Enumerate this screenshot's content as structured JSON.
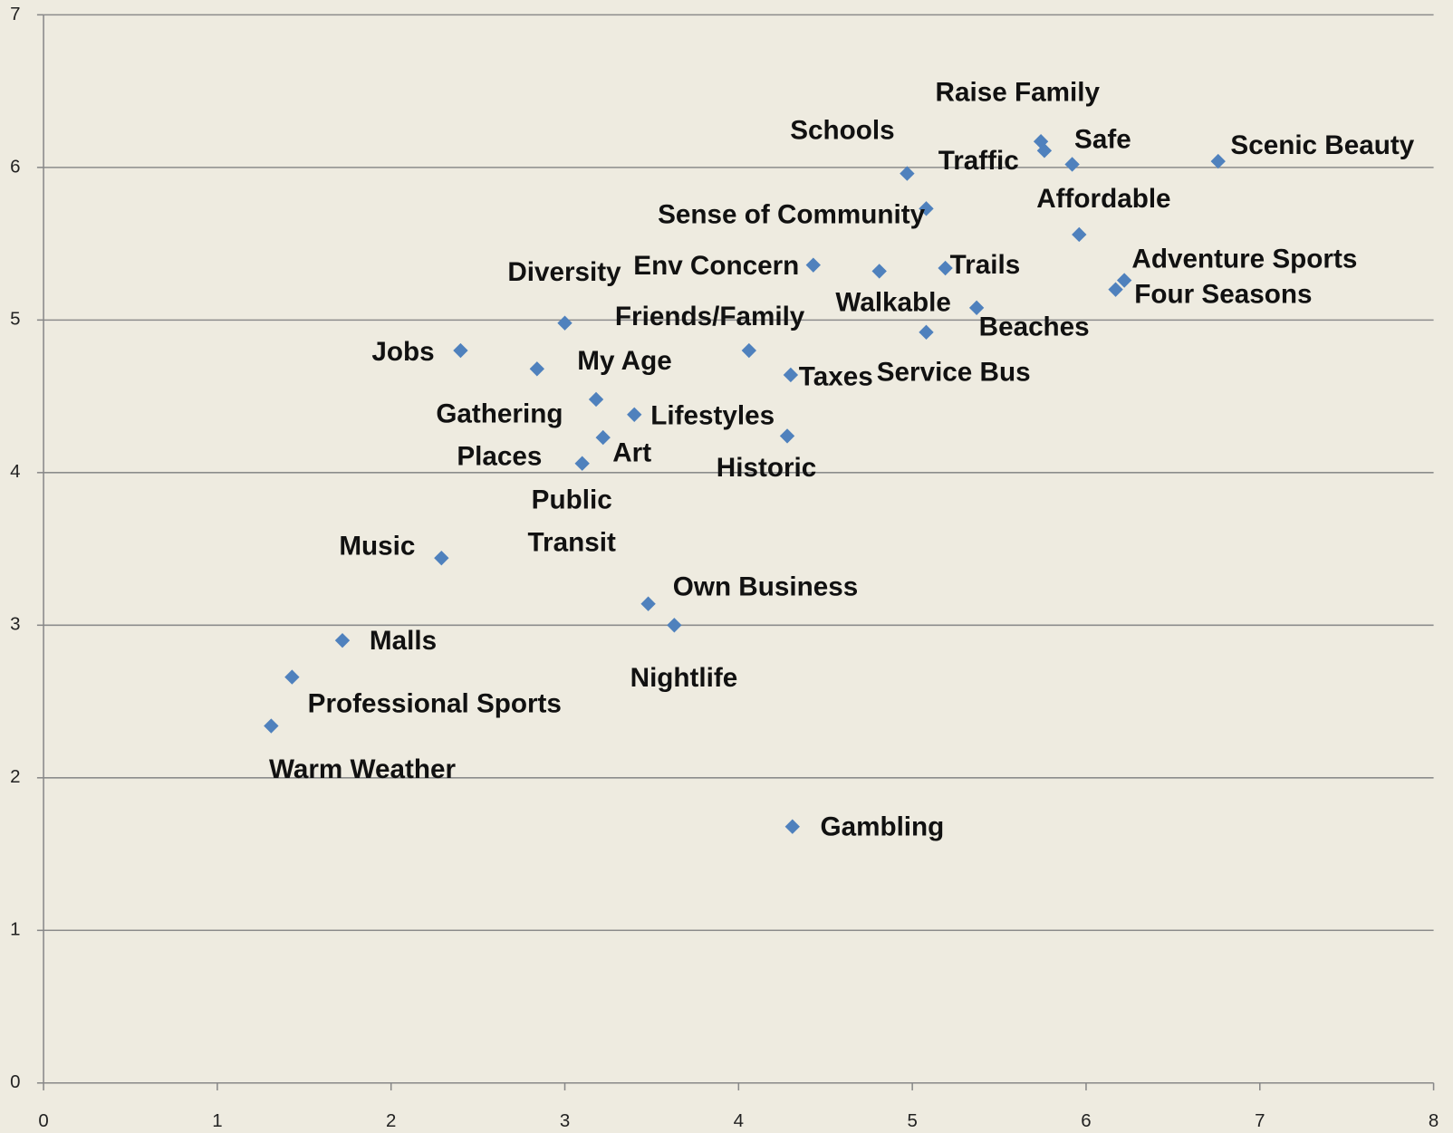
{
  "chart_data": {
    "type": "scatter",
    "labels": [
      "Raise Family",
      "Traffic",
      "Schools",
      "Safe",
      "Scenic Beauty",
      "Sense of Community",
      "Affordable",
      "Env Concern",
      "Walkable",
      "Trails",
      "Adventure Sports",
      "Four Seasons",
      "Beaches",
      "Service Bus",
      "Diversity",
      "Jobs",
      "My Age",
      "Friends/Family",
      "Taxes",
      "Gathering Places",
      "Lifestyles",
      "Art",
      "Historic",
      "Public Transit",
      "Music",
      "Own Business",
      "Nightlife",
      "Malls",
      "Professional Sports",
      "Warm Weather",
      "Gambling"
    ],
    "x": [
      5.74,
      5.76,
      4.97,
      5.92,
      6.76,
      5.08,
      5.96,
      4.43,
      4.81,
      5.19,
      6.22,
      6.17,
      5.37,
      5.08,
      3.0,
      2.4,
      2.84,
      4.06,
      4.3,
      3.18,
      3.4,
      3.22,
      4.28,
      3.1,
      2.29,
      3.48,
      3.63,
      1.72,
      1.43,
      1.31,
      4.31
    ],
    "y": [
      6.17,
      6.11,
      5.96,
      6.02,
      6.04,
      5.73,
      5.56,
      5.36,
      5.32,
      5.34,
      5.26,
      5.2,
      5.08,
      4.92,
      4.98,
      4.8,
      4.68,
      4.8,
      4.64,
      4.48,
      4.38,
      4.23,
      4.24,
      4.06,
      3.44,
      3.14,
      3.0,
      2.9,
      2.66,
      2.34,
      1.68
    ],
    "color": "#4f81bd",
    "xlim": [
      0,
      8
    ],
    "ylim": [
      0,
      7
    ],
    "xticks": [
      0,
      1,
      2,
      3,
      4,
      5,
      6,
      7,
      8
    ],
    "yticks": [
      0,
      1,
      2,
      3,
      4,
      5,
      6,
      7
    ],
    "grid": true
  }
}
